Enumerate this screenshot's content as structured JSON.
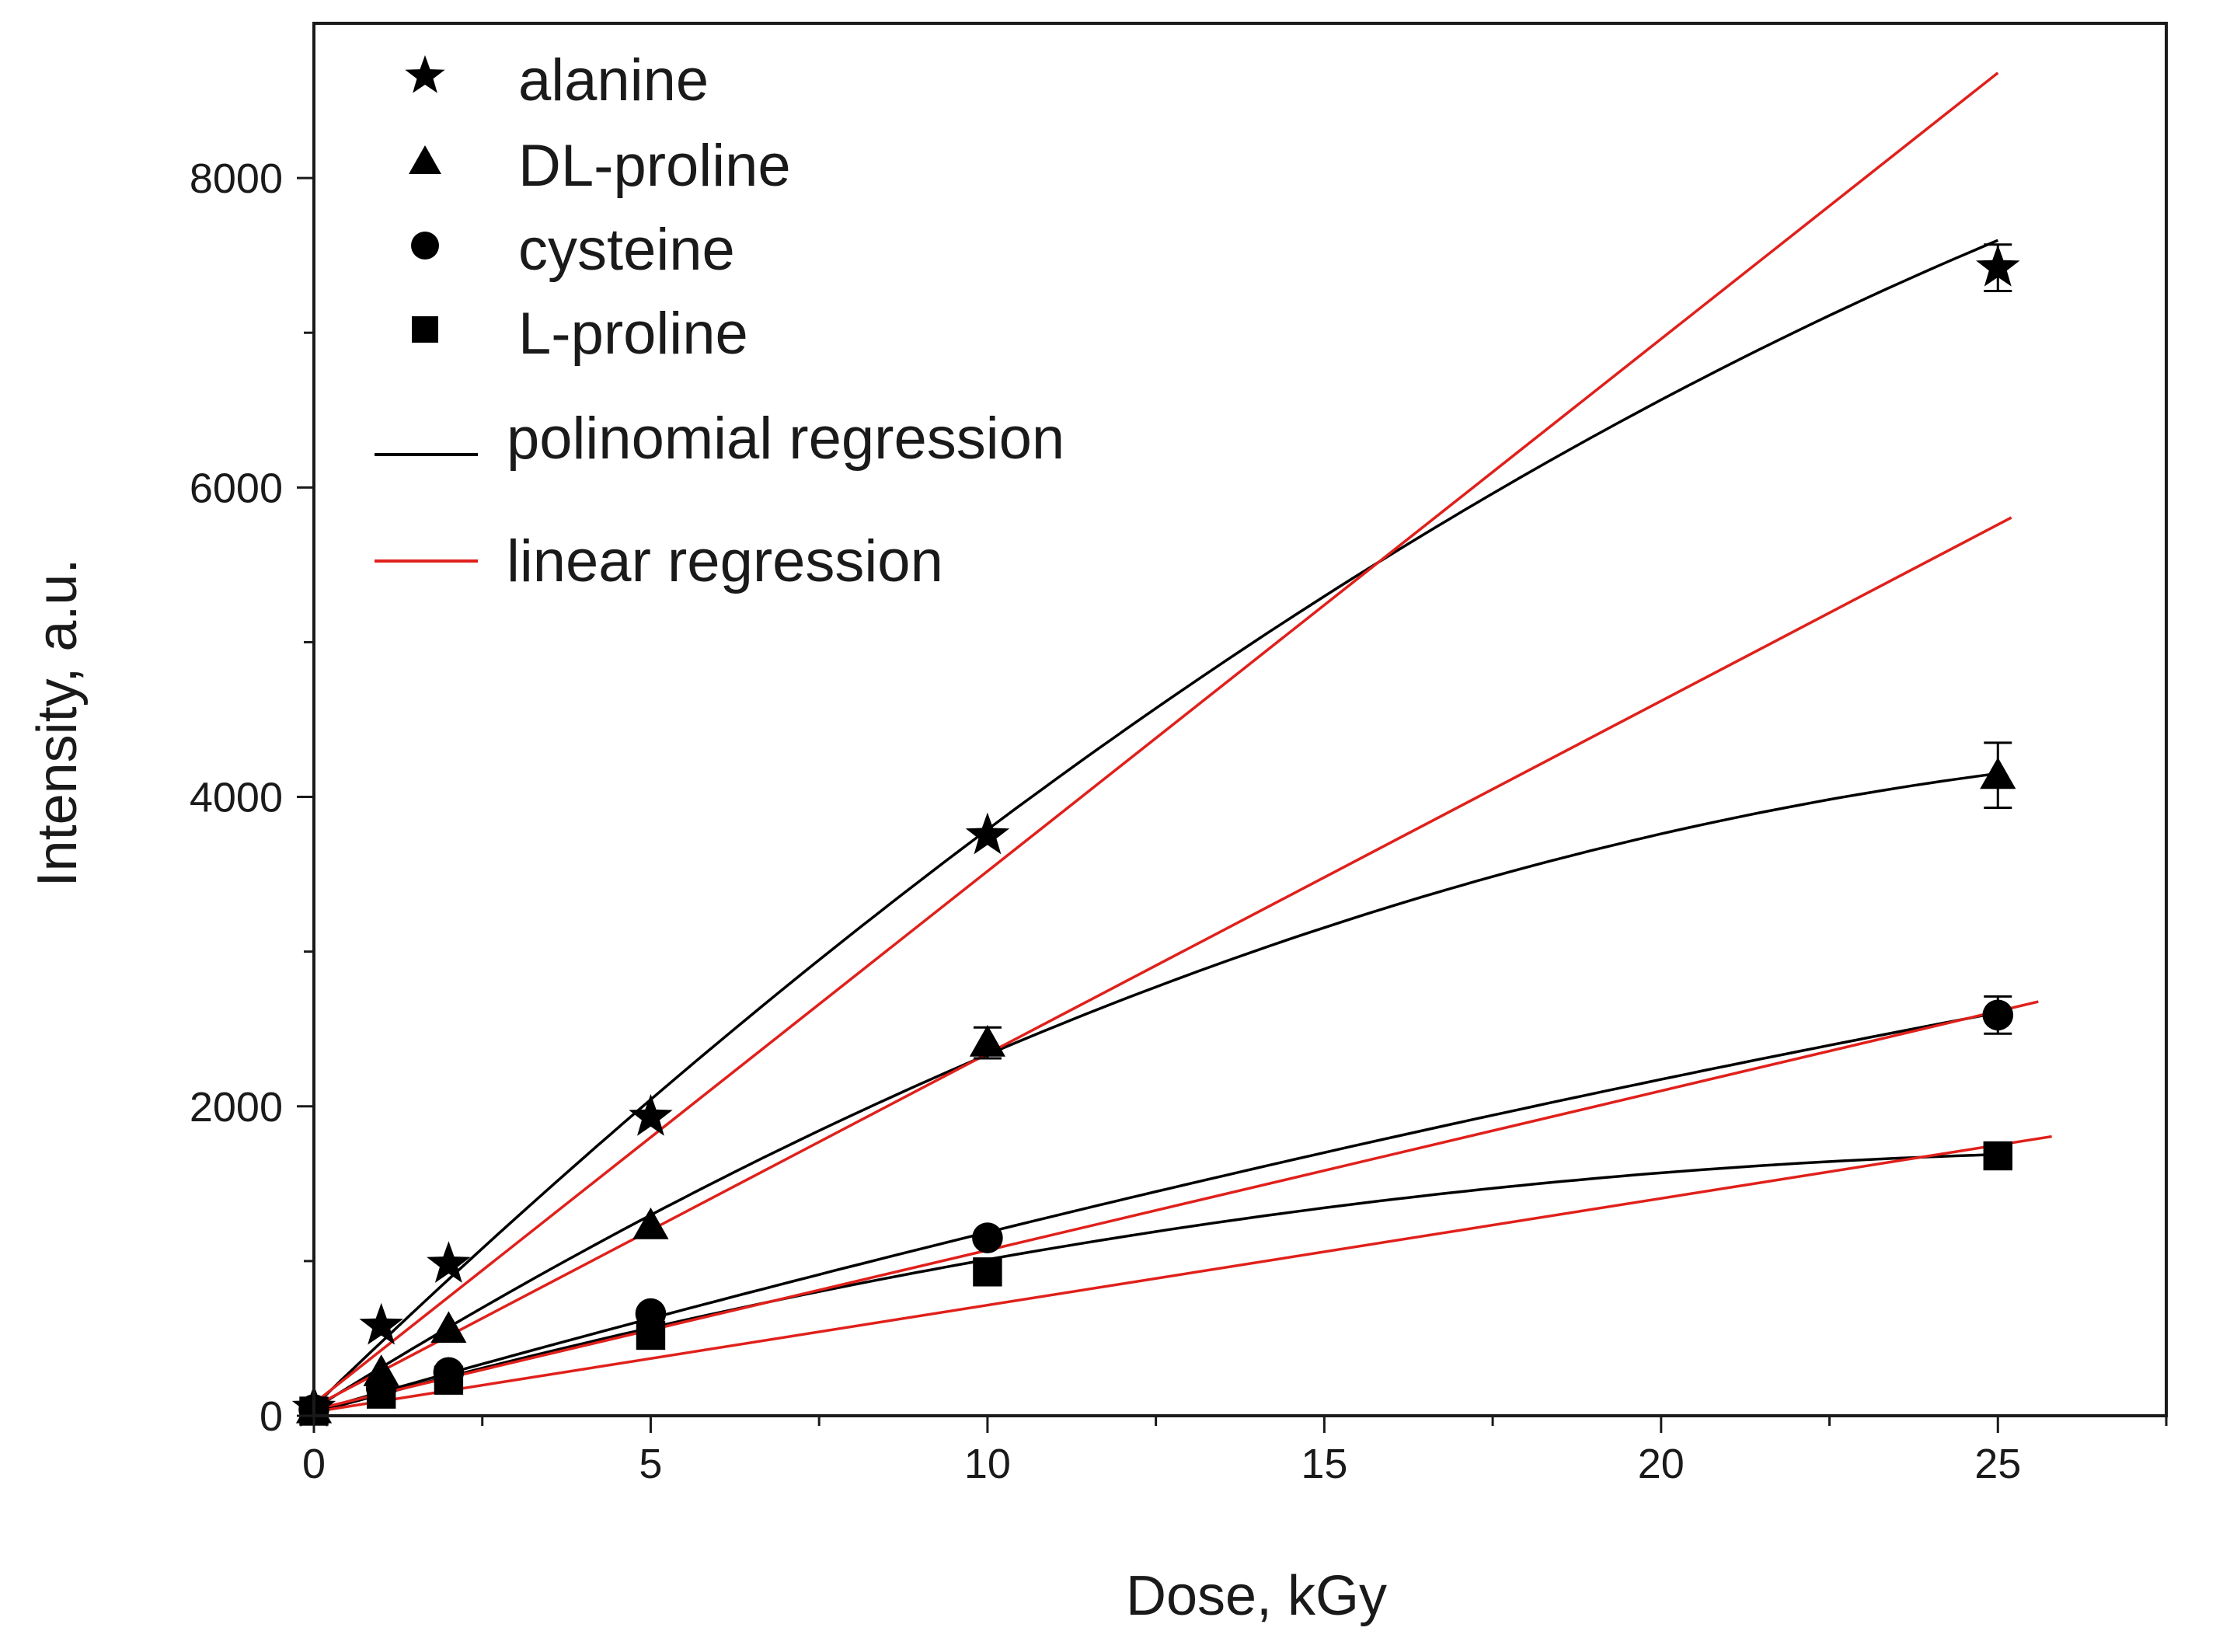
{
  "chart_data": {
    "type": "scatter",
    "title": "",
    "xlabel": "Dose, kGy",
    "ylabel": "Intensity, a.u.",
    "xlim": [
      0,
      27.5
    ],
    "ylim": [
      0,
      9000
    ],
    "x_ticks": [
      0,
      5,
      10,
      15,
      20,
      25
    ],
    "x_tick_labels": [
      "0",
      "5",
      "10",
      "15",
      "20",
      "25"
    ],
    "y_ticks": [
      0,
      2000,
      4000,
      6000,
      8000
    ],
    "y_tick_labels": [
      "0",
      "2000",
      "4000",
      "6000",
      "8000"
    ],
    "legend_position": "top-left",
    "series": [
      {
        "name": "alanine",
        "marker": "star",
        "x": [
          0,
          1,
          2,
          5,
          10,
          25
        ],
        "y": [
          50,
          580,
          980,
          1930,
          3750,
          7420
        ],
        "error": [
          0,
          0,
          0,
          0,
          0,
          150
        ],
        "polynomial_fit": [
          60,
          420.5,
          -4.76
        ],
        "linear_fit": [
          80,
          344.0
        ],
        "linear_fit_xmax": 25
      },
      {
        "name": "DL-proline",
        "marker": "triangle",
        "x": [
          0,
          1,
          2,
          5,
          10,
          25
        ],
        "y": [
          40,
          280,
          560,
          1230,
          2410,
          4140
        ],
        "error": [
          0,
          0,
          0,
          0,
          100,
          210
        ],
        "polynomial_fit": [
          45,
          272.0,
          -4.31
        ],
        "linear_fit": [
          60,
          228.0
        ],
        "linear_fit_xmax": 25.2
      },
      {
        "name": "cysteine",
        "marker": "circle",
        "x": [
          0,
          1,
          2,
          5,
          10,
          25
        ],
        "y": [
          40,
          180,
          280,
          660,
          1150,
          2590
        ],
        "error": [
          0,
          0,
          0,
          0,
          0,
          120
        ],
        "polynomial_fit": [
          30,
          124.0,
          -0.84
        ],
        "linear_fit": [
          40,
          103.0
        ],
        "linear_fit_xmax": 25.6
      },
      {
        "name": "L-proline",
        "marker": "square",
        "x": [
          0,
          1,
          2,
          5,
          10,
          25
        ],
        "y": [
          30,
          140,
          230,
          520,
          930,
          1680
        ],
        "error": [
          0,
          0,
          0,
          0,
          0,
          60
        ],
        "polynomial_fit": [
          20,
          120.5,
          -2.15
        ],
        "linear_fit": [
          25,
          69
        ],
        "linear_fit_xmax": 25.8
      }
    ],
    "fit_lines": [
      {
        "name": "polinomial regression",
        "color": "#000000"
      },
      {
        "name": "linear regression",
        "color": "#e0201b"
      }
    ]
  }
}
